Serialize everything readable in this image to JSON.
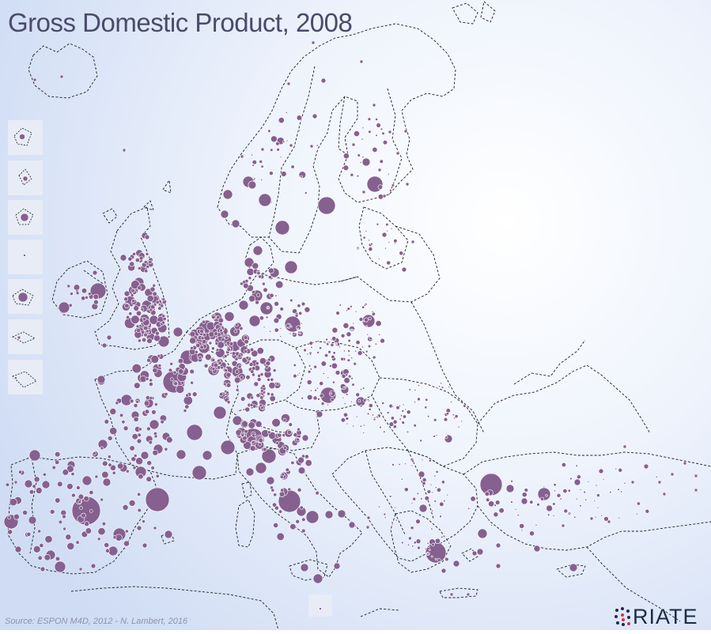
{
  "title": "Gross Domestic Product, 2008",
  "source": "Source: ESPON M4D, 2012 - N. Lambert, 2016",
  "logo": {
    "text": "RIATE",
    "mark": "riate-dots-icon"
  },
  "colors": {
    "symbol": "#86608f",
    "symbol_stroke": "#ffffff",
    "border": "#1e1e1e",
    "background_center": "#ffffff",
    "background_edge": "#cedcf4",
    "inset": "#e8ecf6"
  },
  "map": {
    "symbol_type": "proportional circles",
    "insets": [
      "inset-1",
      "inset-2",
      "inset-3",
      "inset-4",
      "inset-5",
      "inset-6",
      "inset-7",
      "inset-8"
    ]
  }
}
